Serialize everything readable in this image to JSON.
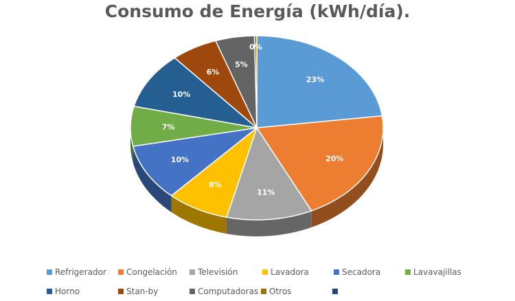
{
  "chart_data": {
    "type": "pie",
    "title": "Consumo de Energía (kWh/día).",
    "categories": [
      "Refrigerador",
      "Congelación",
      "Televisión",
      "Lavadora",
      "Secadora",
      "Lavavajillas",
      "Horno",
      "Stan-by",
      "Computadoras",
      "Otros",
      ""
    ],
    "values": [
      23,
      20,
      11,
      8,
      10,
      7,
      10,
      6,
      5,
      0.3,
      0
    ],
    "labels": [
      "23%",
      "20%",
      "11%",
      "8%",
      "10%",
      "7%",
      "10%",
      "6%",
      "5%",
      "0%",
      ""
    ],
    "colors": [
      "#5B9BD5",
      "#ED7D31",
      "#A5A5A5",
      "#FFC000",
      "#4472C4",
      "#70AD47",
      "#255E91",
      "#9E480E",
      "#636363",
      "#997300",
      "#264478"
    ],
    "legend_position": "bottom",
    "style": "3d-pie"
  }
}
